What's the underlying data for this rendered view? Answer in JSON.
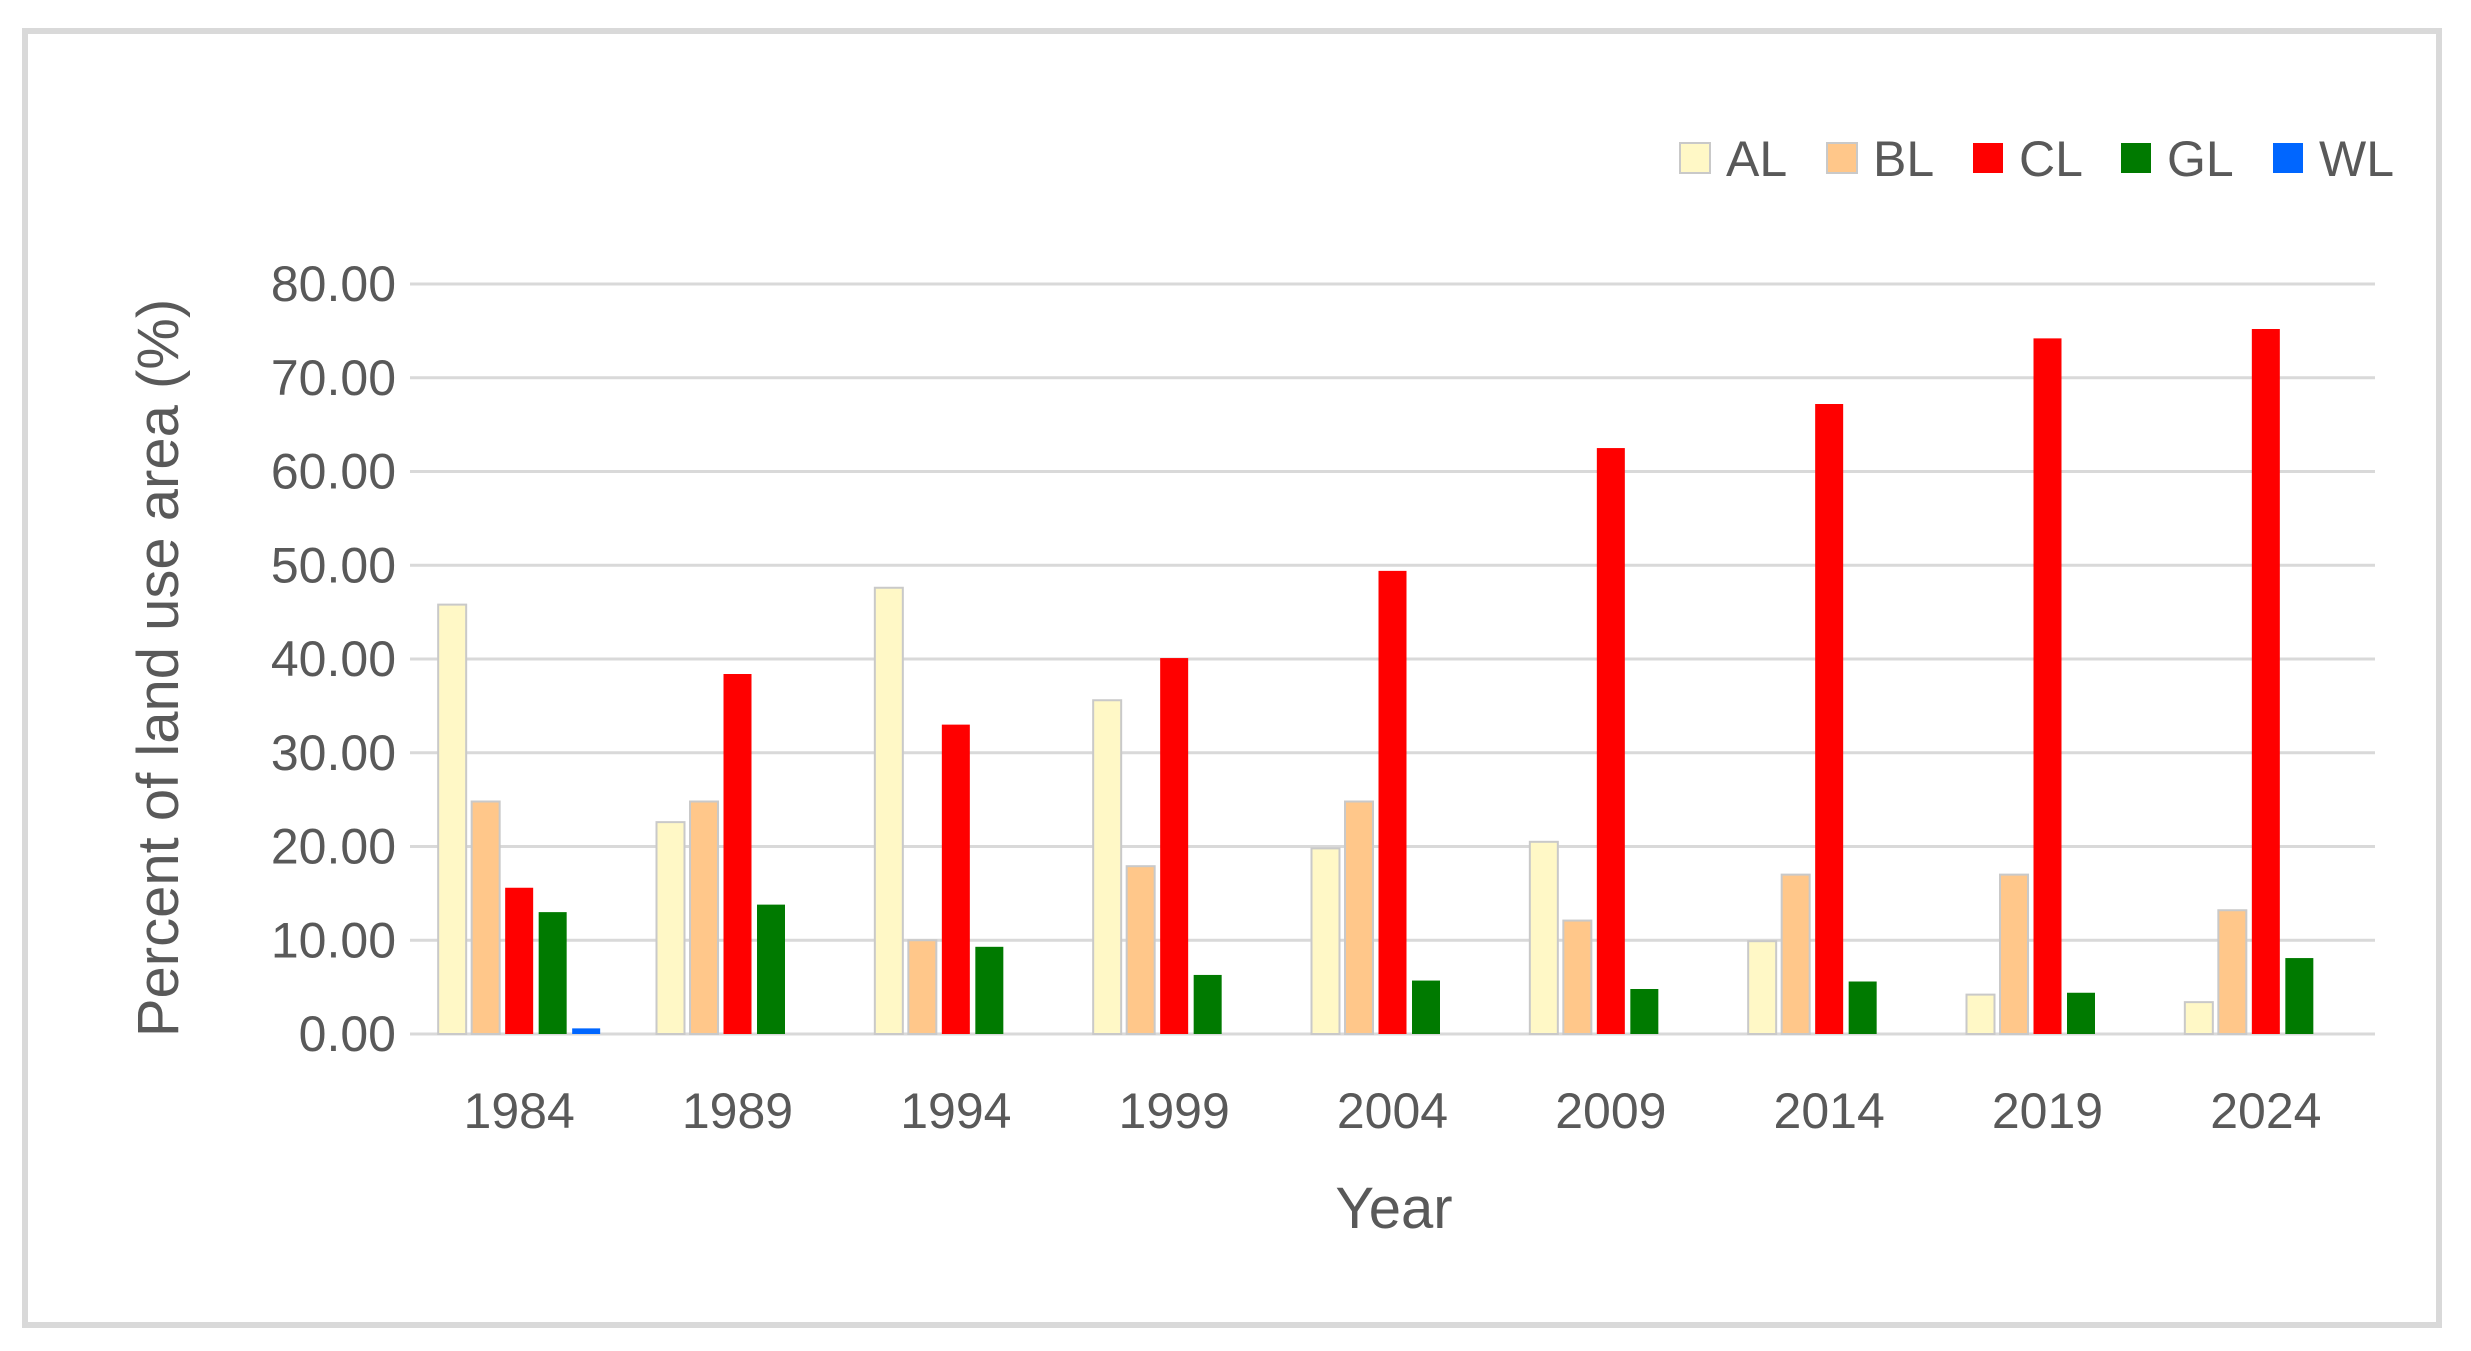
{
  "chart_data": {
    "type": "bar",
    "title": "",
    "xlabel": "Year",
    "ylabel": "Percent of land use area (%)",
    "ylim": [
      0,
      80
    ],
    "yticks": [
      "0.00",
      "10.00",
      "20.00",
      "30.00",
      "40.00",
      "50.00",
      "60.00",
      "70.00",
      "80.00"
    ],
    "grid": true,
    "legend_position": "top-right",
    "categories": [
      "1984",
      "1989",
      "1994",
      "1999",
      "2004",
      "2009",
      "2014",
      "2019",
      "2024"
    ],
    "series": [
      {
        "name": "AL",
        "color": "#FFF8C6",
        "stroke": "#C9C9C9",
        "values": [
          45.8,
          22.6,
          47.6,
          35.6,
          19.8,
          20.5,
          9.9,
          4.2,
          3.4
        ]
      },
      {
        "name": "BL",
        "color": "#FFC78A",
        "stroke": "#C9C9C9",
        "values": [
          24.8,
          24.8,
          10.0,
          17.9,
          24.8,
          12.1,
          17.0,
          17.0,
          13.2
        ]
      },
      {
        "name": "CL",
        "color": "#FF0000",
        "stroke": "none",
        "values": [
          15.6,
          38.4,
          33.0,
          40.1,
          49.4,
          62.5,
          67.2,
          74.2,
          75.2
        ]
      },
      {
        "name": "GL",
        "color": "#007A00",
        "stroke": "none",
        "values": [
          13.0,
          13.8,
          9.3,
          6.3,
          5.7,
          4.8,
          5.6,
          4.4,
          8.1
        ]
      },
      {
        "name": "WL",
        "color": "#0066FF",
        "stroke": "none",
        "values": [
          0.6,
          0,
          0,
          0,
          0,
          0,
          0,
          0,
          0
        ]
      }
    ]
  }
}
